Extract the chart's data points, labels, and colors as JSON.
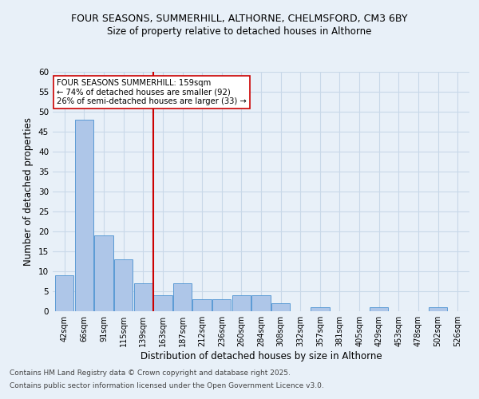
{
  "title1": "FOUR SEASONS, SUMMERHILL, ALTHORNE, CHELMSFORD, CM3 6BY",
  "title2": "Size of property relative to detached houses in Althorne",
  "xlabel": "Distribution of detached houses by size in Althorne",
  "ylabel": "Number of detached properties",
  "categories": [
    "42sqm",
    "66sqm",
    "91sqm",
    "115sqm",
    "139sqm",
    "163sqm",
    "187sqm",
    "212sqm",
    "236sqm",
    "260sqm",
    "284sqm",
    "308sqm",
    "332sqm",
    "357sqm",
    "381sqm",
    "405sqm",
    "429sqm",
    "453sqm",
    "478sqm",
    "502sqm",
    "526sqm"
  ],
  "values": [
    9,
    48,
    19,
    13,
    7,
    4,
    7,
    3,
    3,
    4,
    4,
    2,
    0,
    1,
    0,
    0,
    1,
    0,
    0,
    1,
    0
  ],
  "bar_color": "#aec6e8",
  "bar_edge_color": "#5b9bd5",
  "ref_line_index": 5,
  "ref_line_color": "#cc0000",
  "annotation_text": "FOUR SEASONS SUMMERHILL: 159sqm\n← 74% of detached houses are smaller (92)\n26% of semi-detached houses are larger (33) →",
  "annotation_box_color": "#ffffff",
  "annotation_box_edge": "#cc0000",
  "ylim": [
    0,
    60
  ],
  "yticks": [
    0,
    5,
    10,
    15,
    20,
    25,
    30,
    35,
    40,
    45,
    50,
    55,
    60
  ],
  "grid_color": "#c8d8e8",
  "background_color": "#e8f0f8",
  "footnote1": "Contains HM Land Registry data © Crown copyright and database right 2025.",
  "footnote2": "Contains public sector information licensed under the Open Government Licence v3.0."
}
